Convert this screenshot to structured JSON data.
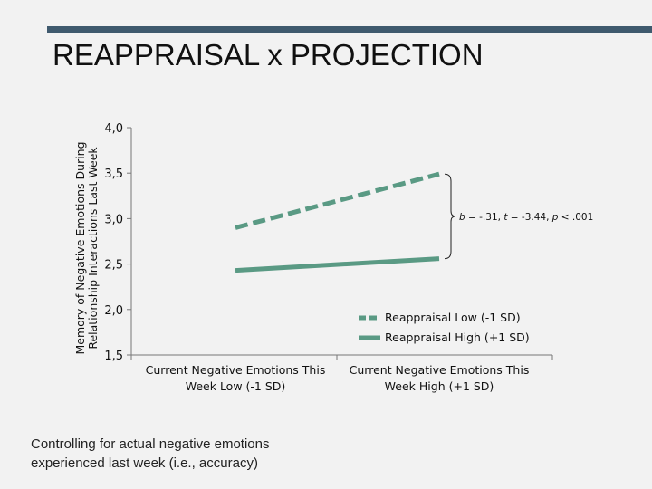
{
  "title": "REAPPRAISAL x PROJECTION",
  "footnote": "Controlling for actual negative emotions experienced last week (i.e., accuracy)",
  "colors": {
    "series": "#5a9a84",
    "title_bar": "#3f5a6e",
    "background": "#f2f2f2"
  },
  "chart_data": {
    "type": "line",
    "title": "",
    "ylabel": "Memory of Negative Emotions During Relationship Interactions Last Week",
    "xlabel": "",
    "categories": [
      "Current Negative Emotions This Week Low (-1 SD)",
      "Current Negative Emotions This Week High (+1 SD)"
    ],
    "ylim": [
      1.5,
      4.0
    ],
    "yticks": [
      "1,5",
      "2,0",
      "2,5",
      "3,0",
      "3,5",
      "4,0"
    ],
    "ytick_values": [
      1.5,
      2.0,
      2.5,
      3.0,
      3.5,
      4.0
    ],
    "grid": false,
    "legend_position": "right",
    "series": [
      {
        "name": "Reappraisal Low (-1 SD)",
        "values": [
          2.9,
          3.49
        ],
        "style": "dashed"
      },
      {
        "name": "Reappraisal High (+1 SD)",
        "values": [
          2.43,
          2.56
        ],
        "style": "solid"
      }
    ],
    "annotation": {
      "b": "b = -.31",
      "t": "t = -3.44",
      "p": "p < .001"
    }
  }
}
